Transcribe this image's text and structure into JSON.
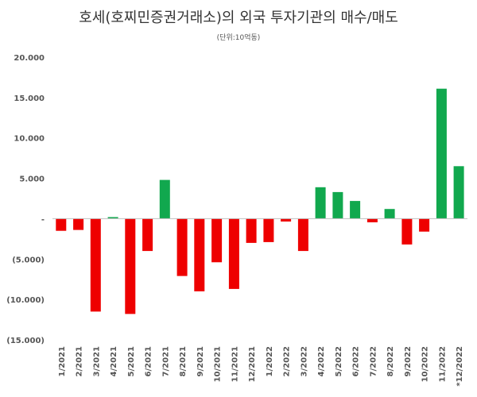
{
  "chart_data": {
    "type": "bar",
    "title": "호세(호찌민증권거래소)의 외국 투자기관의 매수/매도",
    "subtitle": "(단위:10억동)",
    "xlabel": "",
    "ylabel": "",
    "ylim": [
      -15000,
      20000
    ],
    "y_ticks": [
      20000,
      15000,
      10000,
      5000,
      0,
      -5000,
      -10000,
      -15000
    ],
    "y_tick_labels": [
      "20.000",
      "15.000",
      "10.000",
      "5.000",
      "-",
      "(5.000)",
      "(10.000)",
      "(15.000)"
    ],
    "categories": [
      "1/2021",
      "2/2021",
      "3/2021",
      "4/2021",
      "5/2021",
      "6/2021",
      "7/2021",
      "8/2021",
      "9/2021",
      "10/2021",
      "11/2021",
      "12/2021",
      "1/2022",
      "2/2022",
      "3/2022",
      "4/2022",
      "5/2022",
      "6/2022",
      "7/2022",
      "8/2022",
      "9/2022",
      "10/2022",
      "11/2022",
      "*12/2022"
    ],
    "values": [
      -1500,
      -1400,
      -11500,
      200,
      -11800,
      -4000,
      4800,
      -7100,
      -9000,
      -5400,
      -8700,
      -3000,
      -2900,
      -350,
      -4000,
      3900,
      3300,
      2200,
      -450,
      1200,
      -3200,
      -1600,
      16100,
      6500
    ],
    "colors": {
      "positive": "#11a84e",
      "negative": "#ee0000",
      "axis": "#bfbfbf"
    },
    "grid": false,
    "legend": "none"
  }
}
